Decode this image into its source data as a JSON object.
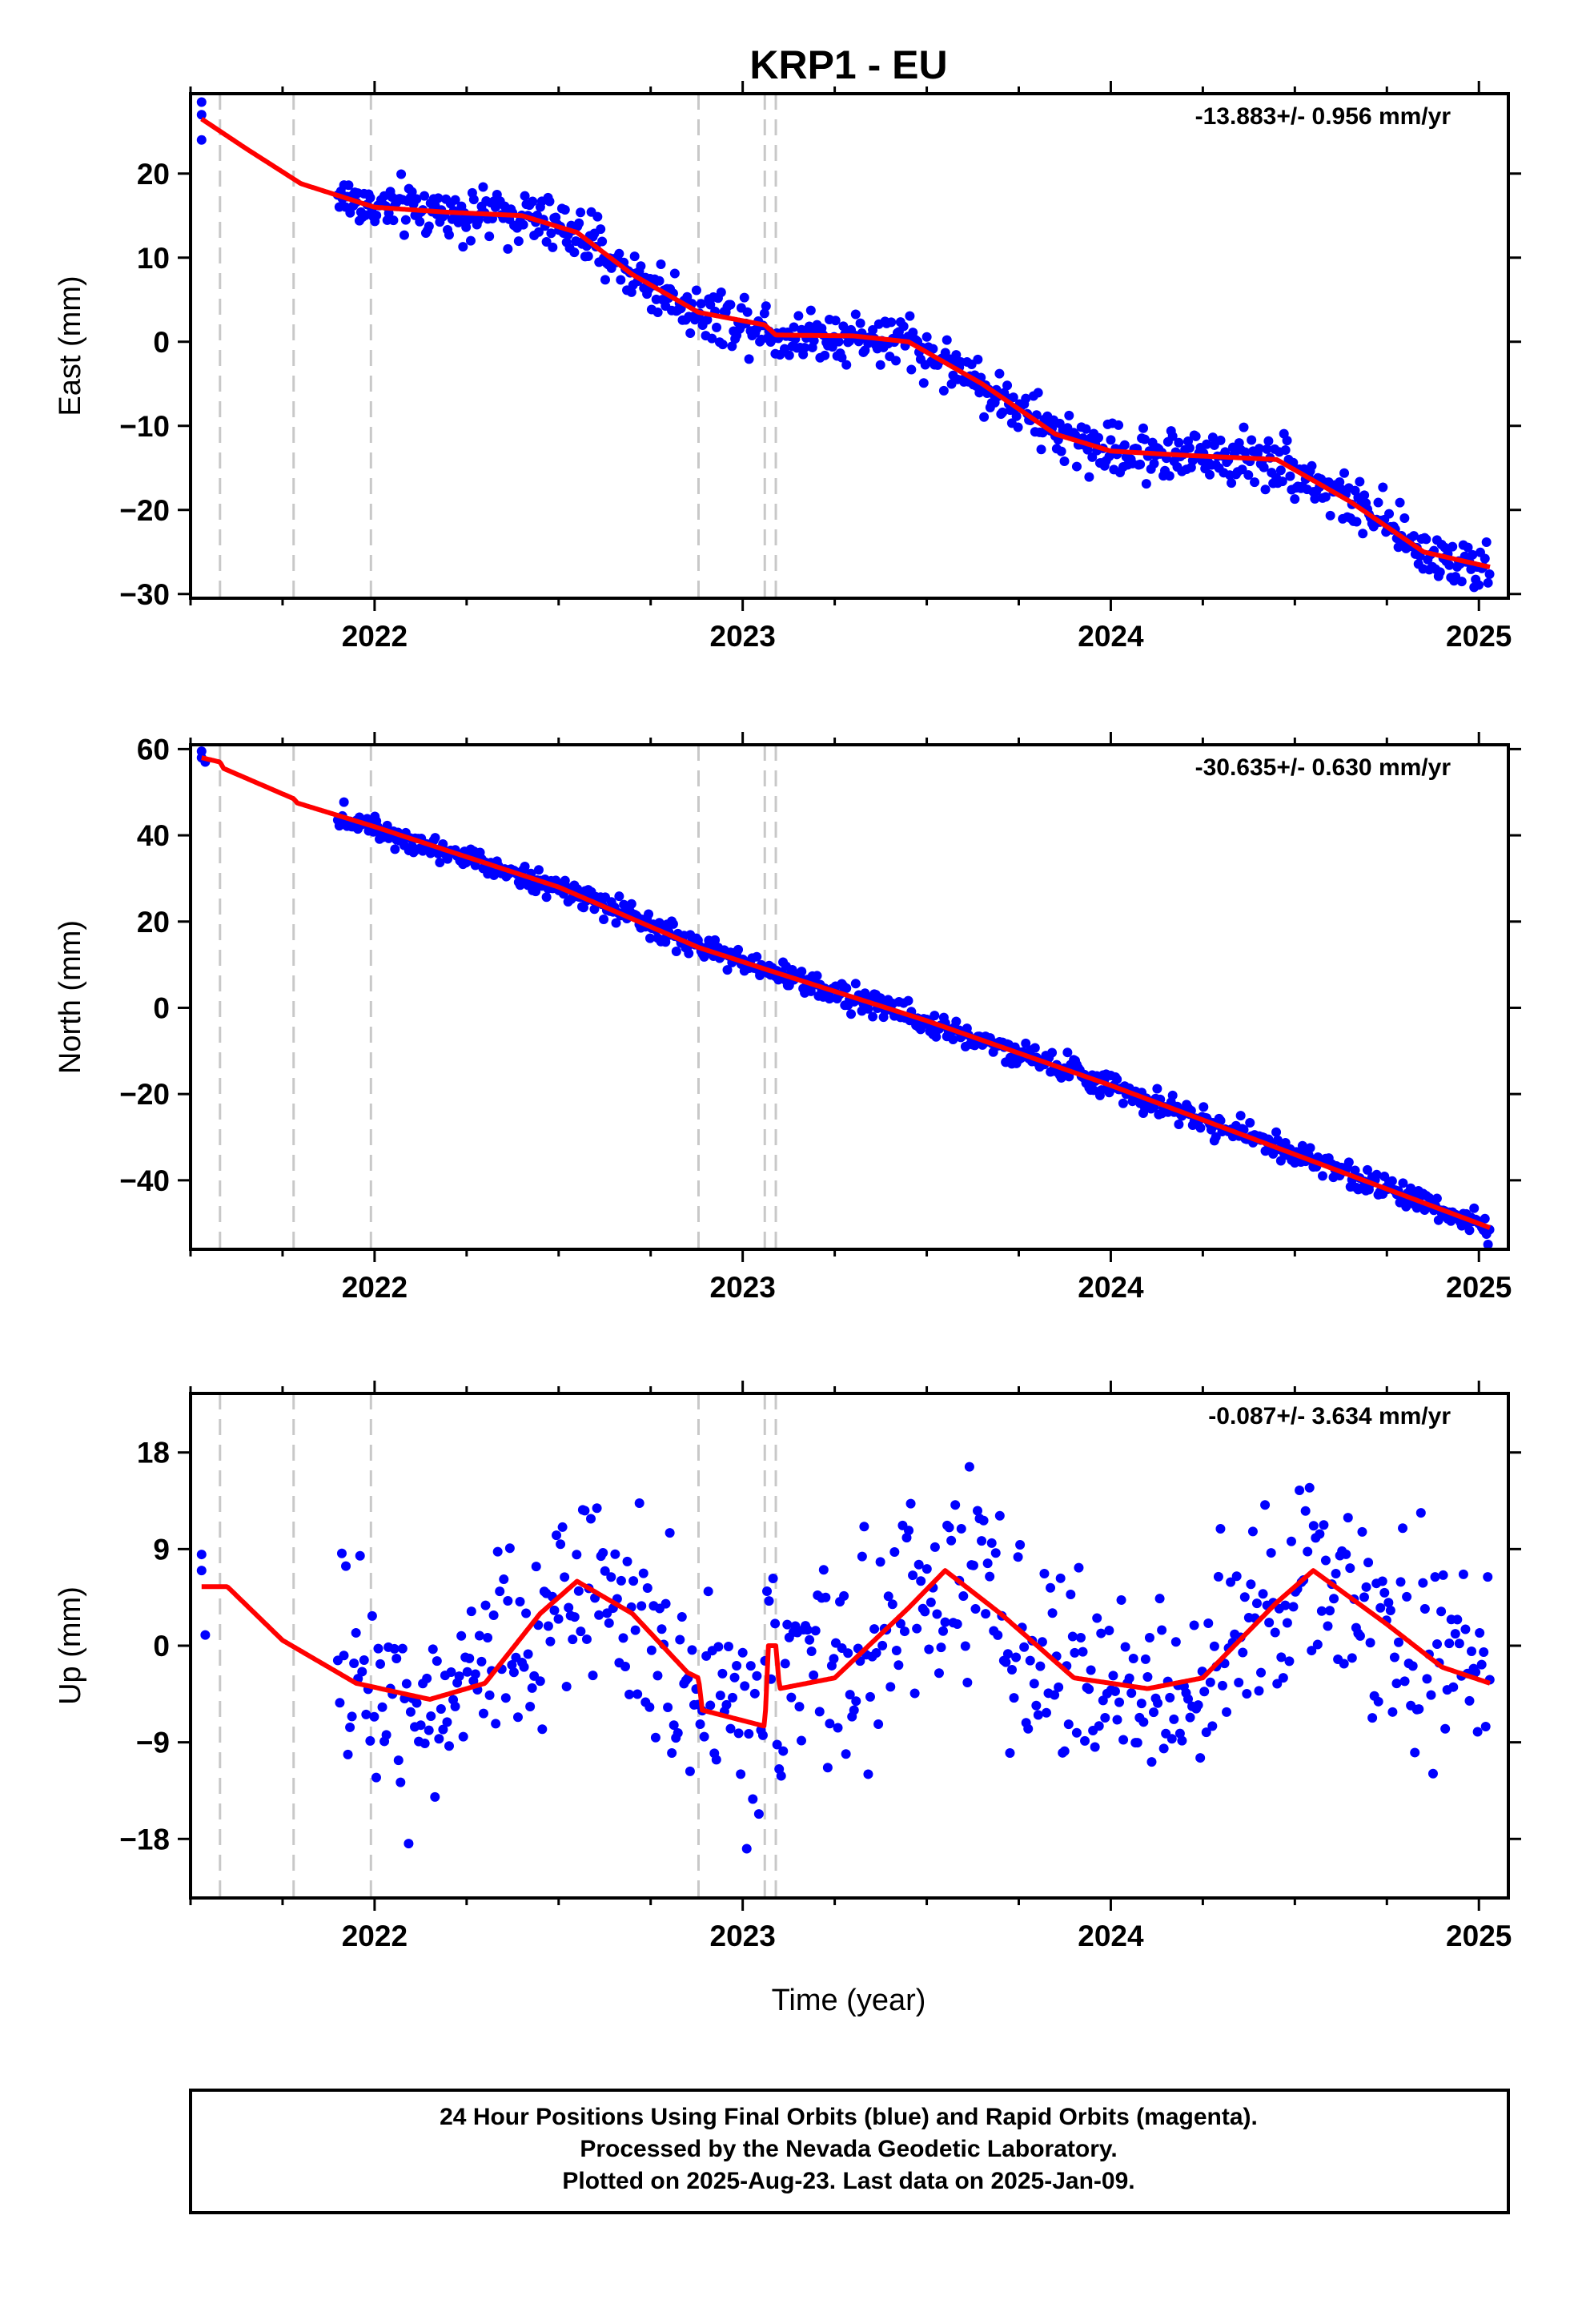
{
  "chart_data": {
    "title": "KRP1 - EU",
    "xlabel": "Time (year)",
    "xlim": [
      2021.5,
      2025.08
    ],
    "x_ticks": [
      2022,
      2023,
      2024,
      2025
    ],
    "x_tick_labels": [
      "2022",
      "2023",
      "2024",
      "2025"
    ],
    "break_lines": [
      2021.58,
      2021.78,
      2021.99,
      2022.88,
      2023.06,
      2023.09
    ],
    "colors": {
      "data": "#0000ff",
      "model": "#ff0000",
      "break": "#c8c8c8"
    },
    "panels": [
      {
        "type": "scatter",
        "component": "east",
        "ylabel": "East (mm)",
        "ylim": [
          -30.5,
          29.5
        ],
        "y_ticks": [
          20,
          10,
          0,
          -10,
          -20,
          -30
        ],
        "y_tick_labels": [
          "20",
          "10",
          "0",
          "−10",
          "−20",
          "−30"
        ],
        "rate": "-13.883+/- 0.956 mm/yr",
        "early_points": [
          [
            2021.53,
            28.5
          ],
          [
            2021.53,
            27
          ],
          [
            2021.53,
            24
          ]
        ],
        "model_knots": [
          [
            2021.53,
            26.5
          ],
          [
            2021.65,
            23
          ],
          [
            2021.8,
            18.8
          ],
          [
            2022.0,
            16
          ],
          [
            2022.2,
            15.4
          ],
          [
            2022.4,
            15
          ],
          [
            2022.55,
            13
          ],
          [
            2022.7,
            8
          ],
          [
            2022.88,
            3.5
          ],
          [
            2023.06,
            2
          ],
          [
            2023.09,
            0.8
          ],
          [
            2023.3,
            0.7
          ],
          [
            2023.45,
            0
          ],
          [
            2023.65,
            -5
          ],
          [
            2023.85,
            -11
          ],
          [
            2024.0,
            -13
          ],
          [
            2024.2,
            -13.5
          ],
          [
            2024.45,
            -14
          ],
          [
            2024.65,
            -19
          ],
          [
            2024.85,
            -25
          ],
          [
            2025.03,
            -26.8
          ]
        ],
        "noise": 1.6
      },
      {
        "type": "scatter",
        "component": "north",
        "ylabel": "North (mm)",
        "ylim": [
          -56,
          61
        ],
        "y_ticks": [
          60,
          40,
          20,
          0,
          -20,
          -40
        ],
        "y_tick_labels": [
          "60",
          "40",
          "20",
          "0",
          "−20",
          "−40"
        ],
        "rate": "-30.635+/- 0.630 mm/yr",
        "early_points": [
          [
            2021.53,
            59.5
          ],
          [
            2021.53,
            58
          ],
          [
            2021.54,
            57
          ]
        ],
        "model_knots": [
          [
            2021.53,
            58
          ],
          [
            2021.58,
            57
          ],
          [
            2021.59,
            55.5
          ],
          [
            2021.78,
            48.5
          ],
          [
            2021.79,
            47.5
          ],
          [
            2022.0,
            42
          ],
          [
            2022.5,
            28
          ],
          [
            2022.88,
            14
          ],
          [
            2023.06,
            9
          ],
          [
            2023.5,
            -3
          ],
          [
            2024.0,
            -18
          ],
          [
            2024.5,
            -34
          ],
          [
            2025.03,
            -51
          ]
        ],
        "noise": 1.5
      },
      {
        "type": "scatter",
        "component": "up",
        "ylabel": "Up (mm)",
        "ylim": [
          -23.5,
          23.5
        ],
        "y_ticks": [
          18,
          9,
          0,
          -9,
          -18
        ],
        "y_tick_labels": [
          "18",
          "9",
          "0",
          "−9",
          "−18"
        ],
        "rate": "-0.087+/- 3.634 mm/yr",
        "early_points": [
          [
            2021.53,
            8.5
          ],
          [
            2021.53,
            7
          ],
          [
            2021.54,
            1
          ]
        ],
        "model_knots": [
          [
            2021.53,
            5.5
          ],
          [
            2021.6,
            5.5
          ],
          [
            2021.75,
            0.5
          ],
          [
            2021.95,
            -3.5
          ],
          [
            2022.15,
            -5
          ],
          [
            2022.3,
            -3.5
          ],
          [
            2022.45,
            3
          ],
          [
            2022.55,
            6
          ],
          [
            2022.7,
            3
          ],
          [
            2022.85,
            -2.5
          ],
          [
            2022.88,
            -3
          ],
          [
            2022.89,
            -6
          ],
          [
            2023.06,
            -7.5
          ],
          [
            2023.07,
            0
          ],
          [
            2023.09,
            0
          ],
          [
            2023.1,
            -4
          ],
          [
            2023.25,
            -3
          ],
          [
            2023.45,
            3.5
          ],
          [
            2023.55,
            7
          ],
          [
            2023.7,
            3
          ],
          [
            2023.9,
            -3
          ],
          [
            2024.1,
            -4
          ],
          [
            2024.25,
            -3
          ],
          [
            2024.45,
            4
          ],
          [
            2024.55,
            7
          ],
          [
            2024.75,
            2
          ],
          [
            2024.9,
            -2
          ],
          [
            2025.03,
            -3.5
          ]
        ],
        "noise": 5.0
      }
    ]
  },
  "footer": {
    "line1": "24 Hour Positions Using Final Orbits (blue) and Rapid Orbits (magenta).",
    "line2": "Processed by the Nevada Geodetic Laboratory.",
    "line3": "Plotted on 2025-Aug-23. Last data on 2025-Jan-09."
  }
}
